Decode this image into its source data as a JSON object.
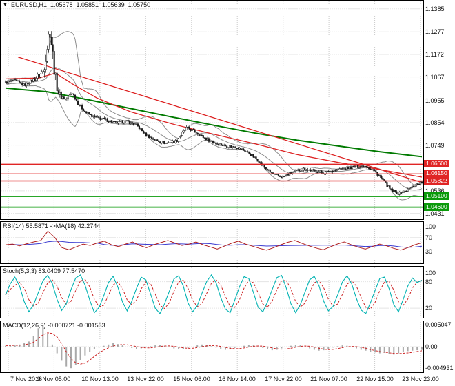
{
  "header": {
    "symbol": "EURUSD,H1",
    "open": "1.05678",
    "high": "1.05851",
    "low": "1.05639",
    "close": "1.05750"
  },
  "indicators": {
    "rsi_label": "RSI(14) 55.5871 ->MA(18) 42.2744",
    "stoch_label": "Stoch(5,3,3) 83.0409 77.5470",
    "macd_label": "MACD(12,26,9) -0.000721 -0.001533"
  },
  "colors": {
    "resistance": "#e02525",
    "support": "#0a9a0a",
    "ma_red": "#dd2222",
    "ma_green": "#007a00",
    "rsi": "#b02020",
    "rsi_ma": "#3b3bd0",
    "stoch": "#00b2b2",
    "signal": "#cc2222",
    "hist": "#a9a9a9",
    "grid": "#c9c9c9",
    "candle": "#1a1a1a"
  },
  "chart_data": {
    "type": "candlestick",
    "symbol": "EURUSD",
    "timeframe": "H1",
    "ohlc": {
      "open": 1.05678,
      "high": 1.05851,
      "low": 1.05639,
      "close": 1.0575
    },
    "ylim": [
      1.042,
      1.14
    ],
    "x_ticks": [
      "7 Nov 2016",
      "9 Nov 05:00",
      "10 Nov 13:00",
      "13 Nov 22:00",
      "15 Nov 06:00",
      "16 Nov 14:00",
      "17 Nov 22:00",
      "21 Nov 07:00",
      "22 Nov 15:00",
      "23 Nov 23:00"
    ],
    "y_axis": {
      "ticks": [
        {
          "label": "1.1385",
          "v": 1.1385
        },
        {
          "label": "1.1277",
          "v": 1.1277
        },
        {
          "label": "1.1172",
          "v": 1.1172
        },
        {
          "label": "1.1067",
          "v": 1.1067
        },
        {
          "label": "1.0955",
          "v": 1.0955
        },
        {
          "label": "1.0854",
          "v": 1.0854
        },
        {
          "label": "1.0749",
          "v": 1.0749
        },
        {
          "label": "1.0536",
          "v": 1.0536
        },
        {
          "label": "1.0431",
          "v": 1.0431
        }
      ],
      "boxed": [
        {
          "label": "1.06600",
          "v": 1.066,
          "type": "resistance"
        },
        {
          "label": "1.06150",
          "v": 1.0615,
          "type": "resistance"
        },
        {
          "label": "1.05822",
          "v": 1.05822,
          "type": "resistance"
        },
        {
          "label": "1.05100",
          "v": 1.051,
          "type": "support"
        },
        {
          "label": "1.04600",
          "v": 1.046,
          "type": "support"
        }
      ]
    },
    "levels": {
      "resistance": [
        1.066,
        1.0615,
        1.05822
      ],
      "support": [
        1.051,
        1.046
      ]
    },
    "price_path": [
      [
        0.0,
        1.104
      ],
      [
        0.02,
        1.1052
      ],
      [
        0.045,
        1.1028
      ],
      [
        0.07,
        1.1058
      ],
      [
        0.09,
        1.109
      ],
      [
        0.1,
        1.121
      ],
      [
        0.107,
        1.1292
      ],
      [
        0.113,
        1.118
      ],
      [
        0.12,
        1.106
      ],
      [
        0.128,
        1.0985
      ],
      [
        0.145,
        1.0962
      ],
      [
        0.16,
        1.0995
      ],
      [
        0.175,
        1.094
      ],
      [
        0.195,
        1.0898
      ],
      [
        0.215,
        1.0878
      ],
      [
        0.24,
        1.0868
      ],
      [
        0.265,
        1.0852
      ],
      [
        0.29,
        1.086
      ],
      [
        0.315,
        1.0842
      ],
      [
        0.335,
        1.08
      ],
      [
        0.36,
        1.0772
      ],
      [
        0.385,
        1.0758
      ],
      [
        0.41,
        1.0768
      ],
      [
        0.435,
        1.083
      ],
      [
        0.455,
        1.0812
      ],
      [
        0.48,
        1.078
      ],
      [
        0.505,
        1.0758
      ],
      [
        0.53,
        1.0745
      ],
      [
        0.555,
        1.074
      ],
      [
        0.58,
        1.0718
      ],
      [
        0.605,
        1.068
      ],
      [
        0.625,
        1.064
      ],
      [
        0.645,
        1.061
      ],
      [
        0.665,
        1.06
      ],
      [
        0.69,
        1.0622
      ],
      [
        0.715,
        1.0638
      ],
      [
        0.74,
        1.063
      ],
      [
        0.765,
        1.062
      ],
      [
        0.79,
        1.0632
      ],
      [
        0.815,
        1.064
      ],
      [
        0.84,
        1.0648
      ],
      [
        0.865,
        1.0652
      ],
      [
        0.885,
        1.063
      ],
      [
        0.905,
        1.059
      ],
      [
        0.925,
        1.054
      ],
      [
        0.945,
        1.0522
      ],
      [
        0.965,
        1.054
      ],
      [
        0.985,
        1.0565
      ],
      [
        1.0,
        1.0575
      ]
    ],
    "ma_green": [
      [
        0,
        1.1015
      ],
      [
        0.1,
        1.0998
      ],
      [
        0.2,
        1.096
      ],
      [
        0.3,
        1.092
      ],
      [
        0.4,
        1.088
      ],
      [
        0.5,
        1.0842
      ],
      [
        0.6,
        1.0805
      ],
      [
        0.7,
        1.0772
      ],
      [
        0.8,
        1.0745
      ],
      [
        0.9,
        1.0718
      ],
      [
        1.0,
        1.0695
      ]
    ],
    "ma_red": [
      [
        0,
        1.1058
      ],
      [
        0.08,
        1.1062
      ],
      [
        0.12,
        1.1085
      ],
      [
        0.16,
        1.1035
      ],
      [
        0.22,
        1.0968
      ],
      [
        0.3,
        1.0905
      ],
      [
        0.4,
        1.0848
      ],
      [
        0.5,
        1.08
      ],
      [
        0.6,
        1.0755
      ],
      [
        0.7,
        1.0705
      ],
      [
        0.8,
        1.0668
      ],
      [
        0.9,
        1.0635
      ],
      [
        1.0,
        1.06
      ]
    ],
    "trendline_red": [
      [
        0.03,
        1.116
      ],
      [
        1.0,
        1.0575
      ]
    ],
    "rsi": {
      "period": 14,
      "ma_period": 18,
      "current": 55.5871,
      "ma_current": 42.2744,
      "levels": [
        70,
        30
      ],
      "ticks": [
        {
          "label": "100",
          "v": 100
        },
        {
          "label": "70",
          "v": 70
        },
        {
          "label": "30",
          "v": 30
        }
      ],
      "values": [
        50,
        52,
        47,
        53,
        58,
        62,
        88,
        70,
        42,
        36,
        44,
        52,
        48,
        55,
        60,
        50,
        45,
        52,
        58,
        48,
        42,
        50,
        56,
        62,
        55,
        48,
        52,
        58,
        50,
        44,
        38,
        46,
        54,
        60,
        52,
        46,
        40,
        35,
        42,
        50,
        57,
        62,
        54,
        47,
        41,
        36,
        44,
        52,
        58,
        50,
        43,
        38,
        45,
        52,
        47,
        40,
        35,
        42,
        50,
        55.6
      ]
    },
    "stoch": {
      "params": "5,3,3",
      "current": 83.0409,
      "signal_current": 77.547,
      "levels": [
        80,
        20
      ],
      "ticks": [
        {
          "label": "100",
          "v": 100
        },
        {
          "label": "80",
          "v": 80
        },
        {
          "label": "20",
          "v": 20
        }
      ],
      "values": [
        50,
        75,
        90,
        70,
        35,
        12,
        28,
        55,
        82,
        94,
        76,
        40,
        15,
        30,
        62,
        88,
        95,
        72,
        38,
        10,
        22,
        48,
        78,
        92,
        68,
        34,
        14,
        36,
        65,
        90,
        84,
        52,
        20,
        8,
        30,
        58,
        86,
        93,
        70,
        32,
        12,
        26,
        54,
        80,
        95,
        78,
        44,
        18,
        10,
        38,
        68,
        91,
        87,
        55,
        22,
        12,
        34,
        62,
        89,
        94,
        66,
        30,
        10,
        28,
        56,
        84,
        92,
        71,
        36,
        14,
        24,
        50,
        79,
        93,
        75,
        42,
        16,
        8,
        32,
        60,
        87,
        90,
        64,
        28,
        12,
        40,
        70,
        88,
        78,
        83
      ]
    },
    "macd": {
      "params": "12,26,9",
      "current": -0.000721,
      "signal_current": -0.001533,
      "ticks": [
        {
          "label": "0.005047",
          "v": 0.005047
        },
        {
          "label": "0.00",
          "v": 0
        },
        {
          "label": "-0.004931",
          "v": -0.004931
        }
      ],
      "histogram": [
        0.0002,
        0.0004,
        0.0003,
        0.0005,
        0.0008,
        0.0012,
        0.0025,
        0.0042,
        0.005,
        0.003,
        0.0005,
        -0.0015,
        -0.0032,
        -0.0045,
        -0.0049,
        -0.0042,
        -0.003,
        -0.002,
        -0.0012,
        -0.0006,
        -0.0002,
        0.0002,
        0.0005,
        0.0008,
        0.0006,
        0.0003,
        0.0,
        -0.0003,
        -0.0005,
        -0.0004,
        -0.0002,
        0.0001,
        0.0003,
        0.0004,
        0.0002,
        -0.0001,
        -0.0004,
        -0.0006,
        -0.0005,
        -0.0003,
        0.0,
        0.0003,
        0.0005,
        0.0004,
        0.0001,
        -0.0002,
        -0.0005,
        -0.0007,
        -0.0006,
        -0.0003,
        -0.0001,
        0.0002,
        0.0004,
        0.0003,
        0.0,
        -0.0003,
        -0.0006,
        -0.0008,
        -0.0007,
        -0.0004,
        -0.0001,
        0.0002,
        0.0004,
        0.0003,
        0.0,
        -0.0004,
        -0.0007,
        -0.0009,
        -0.0008,
        -0.0005,
        -0.0002,
        0.0001,
        0.0003,
        0.0002,
        -0.0001,
        -0.0004,
        -0.0007,
        -0.0009,
        -0.0011,
        -0.0013,
        -0.0015,
        -0.0014,
        -0.0016,
        -0.0018,
        -0.0015,
        -0.0012,
        -0.001,
        -0.0009,
        -0.0008,
        -0.00072
      ]
    }
  }
}
